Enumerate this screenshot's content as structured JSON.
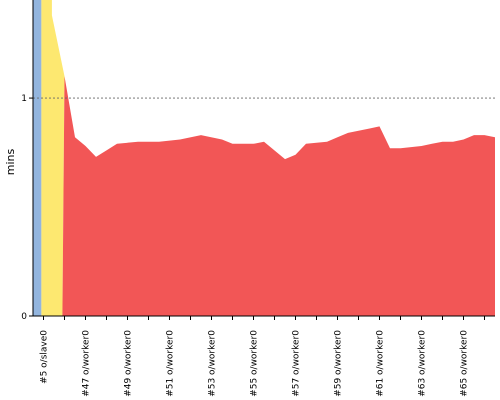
{
  "chart_data": {
    "type": "area",
    "title": "",
    "xlabel": "",
    "ylabel": "mins",
    "ylim": [
      0,
      1.45
    ],
    "yticks": [
      0,
      1
    ],
    "grid": "dashed-horizontal-at-1",
    "categories": [
      "#5 o/slave0",
      "",
      "#47 o/worker0",
      "",
      "#49 o/worker0",
      "",
      "#51 o/worker0",
      "",
      "#53 o/worker0",
      "",
      "#55 o/worker0",
      "",
      "#57 o/worker0",
      "",
      "#59 o/worker0",
      "",
      "#61 o/worker0",
      "",
      "#63 o/worker0",
      "",
      "#65 o/worker0",
      ""
    ],
    "x_positions": [
      0.5,
      1.5,
      2.5,
      3.5,
      4.5,
      5.5,
      6.5,
      7.5,
      8.5,
      9.5,
      10.5,
      11.5,
      12.5,
      13.5,
      14.5,
      15.5,
      16.5,
      17.5,
      18.5,
      19.5,
      20.5,
      21.5
    ],
    "series": [
      {
        "color": "#93b5de",
        "x": [
          -0.05,
          0.4,
          0.4,
          -0.05
        ],
        "y": [
          1.45,
          1.45,
          0,
          0
        ]
      },
      {
        "color": "#fde870",
        "x": [
          0.4,
          0.9,
          0.9,
          1.5,
          1.4,
          0.4
        ],
        "y": [
          1.45,
          1.45,
          1.38,
          1.1,
          0,
          0
        ]
      },
      {
        "color": "#f25656",
        "x": [
          1.4,
          1.5,
          2.0,
          2.5,
          3.0,
          3.5,
          4.0,
          5.0,
          5.5,
          6.0,
          7.0,
          8.0,
          9.0,
          9.5,
          10.5,
          11.0,
          12.0,
          12.5,
          13.0,
          14.0,
          14.5,
          15.0,
          16.0,
          16.5,
          17.0,
          17.5,
          18.5,
          19.0,
          19.5,
          20.0,
          20.5,
          21.0,
          21.5,
          22.0
        ],
        "y": [
          0,
          1.1,
          0.82,
          0.78,
          0.73,
          0.76,
          0.79,
          0.8,
          0.8,
          0.8,
          0.81,
          0.83,
          0.81,
          0.79,
          0.79,
          0.8,
          0.72,
          0.74,
          0.79,
          0.8,
          0.82,
          0.84,
          0.86,
          0.87,
          0.77,
          0.77,
          0.78,
          0.79,
          0.8,
          0.8,
          0.81,
          0.83,
          0.83,
          0.82
        ]
      }
    ]
  }
}
